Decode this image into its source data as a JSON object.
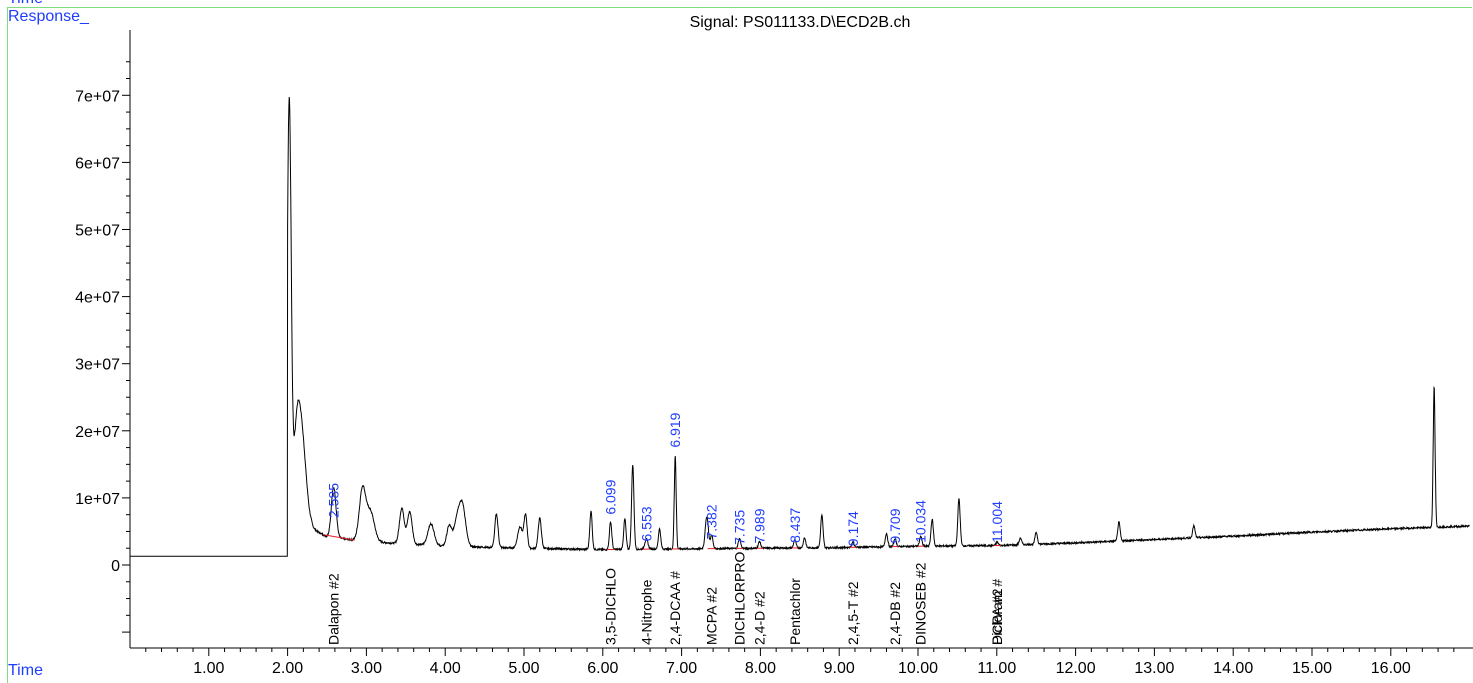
{
  "header": {
    "corner_top": "Time",
    "ylabel": "Response_",
    "xlabel": "Time"
  },
  "chart_data": {
    "type": "line",
    "title": "Signal: PS011133.D\\ECD2B.ch",
    "xlabel": "Time",
    "ylabel": "Response_",
    "xlim": [
      0,
      17.0
    ],
    "ylim": [
      -12000000,
      79000000
    ],
    "x_ticks": [
      "1.00",
      "2.00",
      "3.00",
      "4.00",
      "5.00",
      "6.00",
      "7.00",
      "8.00",
      "9.00",
      "10.00",
      "11.00",
      "12.00",
      "13.00",
      "14.00",
      "15.00",
      "16.00"
    ],
    "y_ticks": [
      "0",
      "1e+07",
      "2e+07",
      "3e+07",
      "4e+07",
      "5e+07",
      "6e+07",
      "7e+07"
    ],
    "baseline": [
      [
        0,
        1300000
      ],
      [
        2.0,
        1300000
      ],
      [
        2.02,
        1300000
      ],
      [
        2.3,
        5500000
      ],
      [
        2.5,
        4200000
      ],
      [
        3,
        3500000
      ],
      [
        4,
        2800000
      ],
      [
        5,
        2500000
      ],
      [
        6,
        2300000
      ],
      [
        7,
        2400000
      ],
      [
        8,
        2500000
      ],
      [
        9,
        2600000
      ],
      [
        10,
        2800000
      ],
      [
        11,
        2900000
      ],
      [
        12,
        3300000
      ],
      [
        13,
        3800000
      ],
      [
        14,
        4300000
      ],
      [
        15,
        4900000
      ],
      [
        16,
        5400000
      ],
      [
        17,
        5800000
      ]
    ],
    "peaks": [
      [
        2.02,
        66000000,
        0.025
      ],
      [
        2.12,
        18000000,
        0.05
      ],
      [
        2.2,
        10000000,
        0.05
      ],
      [
        2.585,
        7500000,
        0.03
      ],
      [
        2.95,
        7600000,
        0.04
      ],
      [
        3.05,
        4500000,
        0.05
      ],
      [
        3.45,
        5300000,
        0.03
      ],
      [
        3.55,
        4800000,
        0.03
      ],
      [
        3.82,
        3200000,
        0.04
      ],
      [
        4.05,
        3000000,
        0.03
      ],
      [
        4.15,
        3800000,
        0.04
      ],
      [
        4.22,
        5800000,
        0.04
      ],
      [
        4.65,
        5000000,
        0.02
      ],
      [
        4.95,
        3200000,
        0.03
      ],
      [
        5.02,
        4900000,
        0.02
      ],
      [
        5.2,
        4500000,
        0.02
      ],
      [
        5.85,
        5700000,
        0.015
      ],
      [
        6.099,
        4100000,
        0.015
      ],
      [
        6.28,
        4500000,
        0.015
      ],
      [
        6.38,
        12500000,
        0.015
      ],
      [
        6.553,
        1500000,
        0.02
      ],
      [
        6.72,
        3000000,
        0.015
      ],
      [
        6.919,
        14000000,
        0.012
      ],
      [
        7.32,
        4800000,
        0.02
      ],
      [
        7.382,
        2000000,
        0.015
      ],
      [
        7.735,
        1500000,
        0.015
      ],
      [
        7.989,
        1000000,
        0.015
      ],
      [
        8.437,
        1200000,
        0.015
      ],
      [
        8.56,
        1500000,
        0.015
      ],
      [
        8.78,
        4800000,
        0.015
      ],
      [
        9.174,
        800000,
        0.015
      ],
      [
        9.6,
        2000000,
        0.015
      ],
      [
        9.709,
        1200000,
        0.015
      ],
      [
        10.034,
        1500000,
        0.015
      ],
      [
        10.18,
        4000000,
        0.015
      ],
      [
        10.52,
        7000000,
        0.015
      ],
      [
        11.004,
        500000,
        0.015
      ],
      [
        11.3,
        1000000,
        0.015
      ],
      [
        11.5,
        1800000,
        0.015
      ],
      [
        12.55,
        2800000,
        0.015
      ],
      [
        13.5,
        1800000,
        0.015
      ],
      [
        16.55,
        21000000,
        0.012
      ]
    ],
    "rt_labels": [
      {
        "rt": "2.585",
        "x": 2.585,
        "y": 7000000
      },
      {
        "rt": "6.099",
        "x": 6.099,
        "y": 7500000
      },
      {
        "rt": "6.553",
        "x": 6.553,
        "y": 3500000
      },
      {
        "rt": "6.919",
        "x": 6.919,
        "y": 17500000
      },
      {
        "rt": "7.382",
        "x": 7.382,
        "y": 3800000
      },
      {
        "rt": "7.735",
        "x": 7.735,
        "y": 3000000
      },
      {
        "rt": "7.989",
        "x": 7.989,
        "y": 3200000
      },
      {
        "rt": "8.437",
        "x": 8.437,
        "y": 3300000
      },
      {
        "rt": "9.174",
        "x": 9.174,
        "y": 2800000
      },
      {
        "rt": "9.709",
        "x": 9.709,
        "y": 3200000
      },
      {
        "rt": "10.034",
        "x": 10.034,
        "y": 3300000
      },
      {
        "rt": "11.004",
        "x": 11.004,
        "y": 3300000
      }
    ],
    "compound_labels": [
      {
        "name": "Dalapon #2",
        "x": 2.585
      },
      {
        "name": "3,5-DICHLO",
        "x": 6.099
      },
      {
        "name": "4-Nitrophe",
        "x": 6.553
      },
      {
        "name": "2,4-DCAA #",
        "x": 6.919
      },
      {
        "name": "MCPA #2",
        "x": 7.382
      },
      {
        "name": "DICHLORPRO",
        "x": 7.735
      },
      {
        "name": "2,4-D #2",
        "x": 7.989
      },
      {
        "name": "Pentachlor",
        "x": 8.437
      },
      {
        "name": "2,4,5-T #2",
        "x": 9.174
      },
      {
        "name": "2,4-DB #2",
        "x": 9.709
      },
      {
        "name": "DINOSEB #2",
        "x": 10.034
      },
      {
        "name": "DCPA #2",
        "x": 11.004
      },
      {
        "name": "Picloram #",
        "x": 11.004
      }
    ]
  }
}
